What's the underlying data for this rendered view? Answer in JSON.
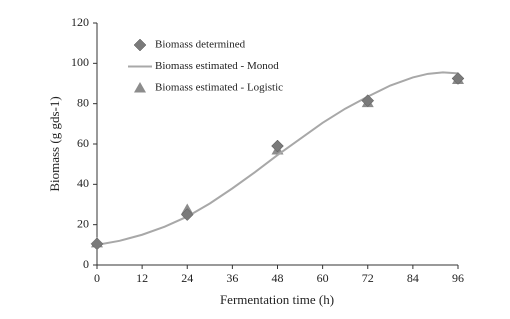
{
  "chart_data": {
    "type": "scatter",
    "xlabel": "Fermentation time (h)",
    "ylabel": "Biomass (g gds-1)",
    "xlim": [
      0,
      96
    ],
    "xticks": [
      0,
      12,
      24,
      36,
      48,
      60,
      72,
      84,
      96
    ],
    "ylim": [
      0,
      120
    ],
    "yticks": [
      0,
      20,
      40,
      60,
      80,
      100,
      120
    ],
    "series": [
      {
        "name": "Biomass determined",
        "marker": "diamond",
        "color": "#7a7a7a",
        "x": [
          0,
          24,
          48,
          72,
          96
        ],
        "values": [
          10.5,
          25,
          59,
          81.5,
          92.5
        ]
      },
      {
        "name": "Biomass estimated - Monod",
        "marker": "line",
        "color": "#a8a8a8",
        "x": [
          0,
          6,
          12,
          18,
          24,
          30,
          36,
          42,
          48,
          54,
          60,
          66,
          72,
          78,
          84,
          88,
          92,
          96
        ],
        "values": [
          10,
          12,
          15,
          19,
          24,
          30.5,
          38,
          46,
          54.5,
          62.5,
          70.5,
          77.5,
          83.5,
          89,
          93,
          94.8,
          95.5,
          95
        ]
      },
      {
        "name": "Biomass estimated - Logistic",
        "marker": "triangle",
        "color": "#8c8c8c",
        "x": [
          0,
          24,
          48,
          72,
          96
        ],
        "values": [
          11,
          27.5,
          57,
          80.5,
          92
        ]
      }
    ]
  }
}
